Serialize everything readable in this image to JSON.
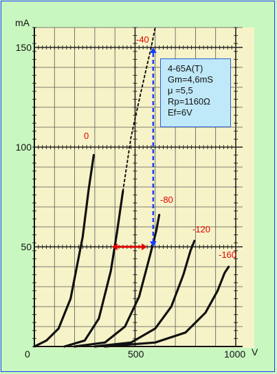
{
  "chart_data": {
    "type": "line",
    "title": "",
    "xlabel": "V",
    "ylabel": "mA",
    "xlim": [
      0,
      1000
    ],
    "ylim": [
      0,
      160
    ],
    "x_ticks": [
      "0",
      "500",
      "1000"
    ],
    "y_ticks": [
      "50",
      "100",
      "150"
    ],
    "grid": true,
    "series": [
      {
        "name": "0",
        "points": [
          [
            0,
            0
          ],
          [
            60,
            3
          ],
          [
            120,
            9
          ],
          [
            180,
            24
          ],
          [
            240,
            55
          ],
          [
            270,
            79
          ],
          [
            295,
            96
          ]
        ]
      },
      {
        "name": "-40",
        "points": [
          [
            150,
            0
          ],
          [
            250,
            3
          ],
          [
            320,
            14
          ],
          [
            380,
            38
          ],
          [
            410,
            57
          ],
          [
            440,
            78
          ]
        ]
      },
      {
        "name": "-40 (dashed)",
        "style": "dashed",
        "points": [
          [
            440,
            78
          ],
          [
            480,
            105
          ],
          [
            530,
            128
          ],
          [
            580,
            150
          ],
          [
            600,
            160
          ]
        ]
      },
      {
        "name": "-80",
        "points": [
          [
            200,
            0
          ],
          [
            350,
            2
          ],
          [
            450,
            10
          ],
          [
            520,
            25
          ],
          [
            575,
            46
          ],
          [
            605,
            58
          ],
          [
            620,
            66
          ]
        ]
      },
      {
        "name": "-120",
        "points": [
          [
            300,
            0
          ],
          [
            480,
            2
          ],
          [
            600,
            9
          ],
          [
            680,
            20
          ],
          [
            740,
            36
          ],
          [
            775,
            48
          ],
          [
            795,
            53
          ]
        ]
      },
      {
        "name": "-160",
        "points": [
          [
            350,
            0
          ],
          [
            600,
            2
          ],
          [
            750,
            7
          ],
          [
            850,
            17
          ],
          [
            910,
            28
          ],
          [
            945,
            37
          ],
          [
            965,
            40
          ]
        ]
      }
    ],
    "curve_labels": [
      "0",
      "-40",
      "-80",
      "-120",
      "-160"
    ],
    "annotations": {
      "delta_v_arrow": {
        "from": [
          385,
          50
        ],
        "to": [
          560,
          50
        ],
        "color": "#e00000"
      },
      "delta_i_arrow": {
        "from": [
          590,
          50
        ],
        "to": [
          590,
          150
        ],
        "color": "#1a3cff"
      },
      "info_lines": [
        "4-65A(T)",
        "Gm=4,6mS",
        "μ =5,5",
        "Rp=1160Ω",
        "Ef=6V"
      ]
    }
  }
}
